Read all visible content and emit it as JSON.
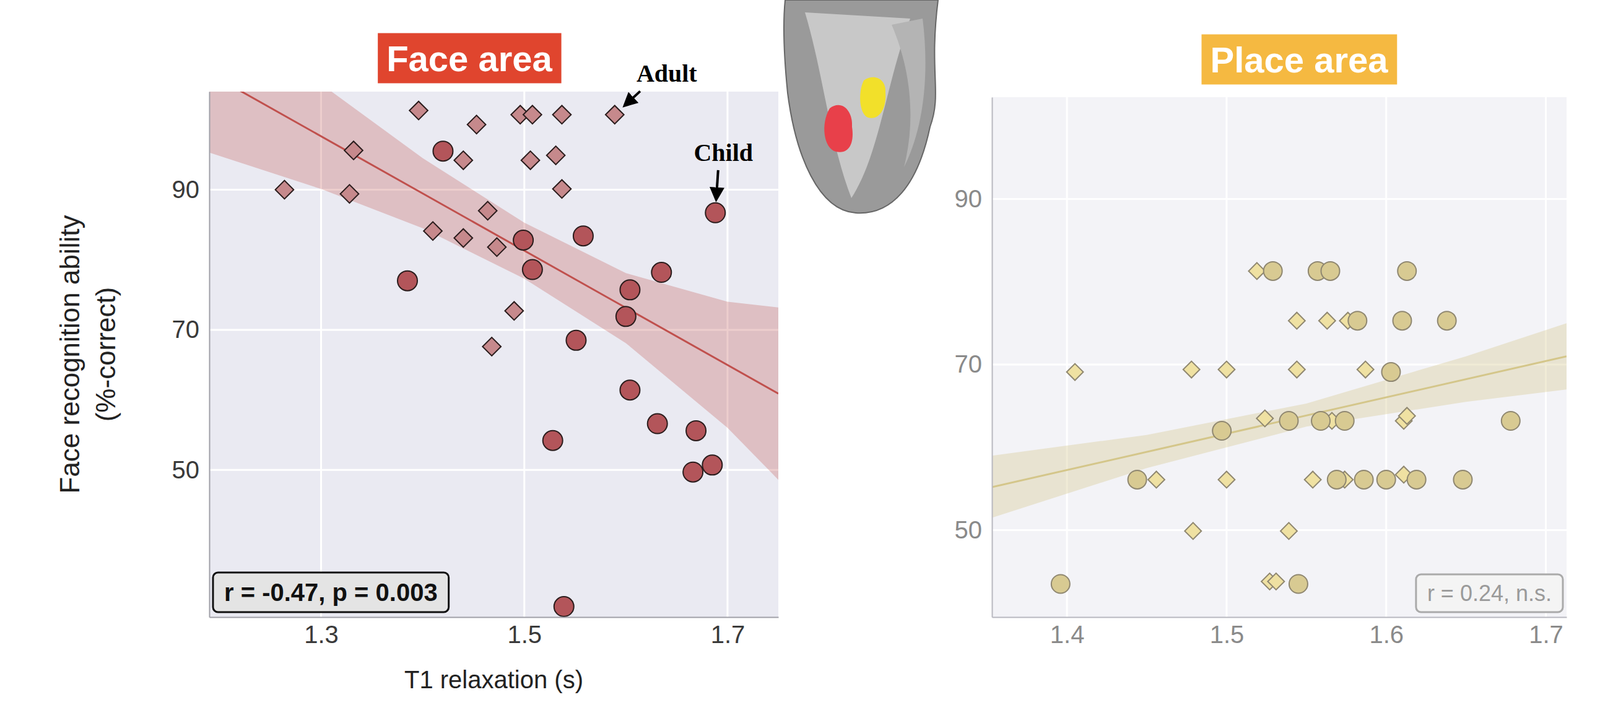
{
  "chart_data": [
    {
      "type": "scatter",
      "title": "Face area",
      "xlabel": "T1 relaxation (s)",
      "ylabel": "Face recognition ability (%-correct)",
      "xlim": [
        1.19,
        1.75
      ],
      "ylim": [
        29,
        104
      ],
      "xticks": [
        1.3,
        1.5,
        1.7
      ],
      "yticks": [
        50,
        70,
        90
      ],
      "grid": true,
      "color": "#c0504d",
      "series": [
        {
          "marker": "diamond",
          "color": "#c6898c",
          "x": [
            1.264,
            1.328,
            1.332,
            1.396,
            1.41,
            1.44,
            1.44,
            1.453,
            1.464,
            1.473,
            1.49,
            1.468,
            1.496,
            1.508,
            1.506,
            1.531,
            1.537,
            1.537,
            1.589
          ],
          "y": [
            90.0,
            89.4,
            95.6,
            101.3,
            84.1,
            83.1,
            94.2,
            99.3,
            87.0,
            81.8,
            72.7,
            67.6,
            100.7,
            100.7,
            94.2,
            94.9,
            100.7,
            90.1,
            100.7
          ]
        },
        {
          "marker": "circle",
          "color": "#b3555a",
          "x": [
            1.385,
            1.42,
            1.499,
            1.508,
            1.558,
            1.551,
            1.528,
            1.539,
            1.604,
            1.6,
            1.604,
            1.635,
            1.631,
            1.669,
            1.666,
            1.685,
            1.688
          ],
          "y": [
            77.0,
            95.5,
            82.8,
            78.6,
            83.4,
            68.5,
            54.2,
            30.5,
            75.7,
            71.9,
            61.4,
            78.2,
            56.6,
            55.6,
            49.7,
            50.7,
            86.7
          ]
        }
      ],
      "fit": {
        "x": [
          1.19,
          1.75
        ],
        "y": [
          106.6,
          60.9
        ]
      },
      "band": {
        "x": [
          1.19,
          1.3,
          1.4,
          1.5,
          1.6,
          1.7,
          1.75
        ],
        "lower": [
          95.3,
          90.1,
          84.5,
          77.3,
          68.1,
          56.0,
          48.6
        ],
        "upper": [
          118.0,
          105.1,
          94.5,
          85.3,
          78.1,
          74.0,
          73.2
        ]
      },
      "annotations": [
        {
          "text": "Adult",
          "x": 1.589,
          "y": 100.7
        },
        {
          "text": "Child",
          "x": 1.688,
          "y": 86.7
        }
      ],
      "note": "r = -0.47, p = 0.003"
    },
    {
      "type": "scatter",
      "title": "Place area",
      "xlim": [
        1.353,
        1.713
      ],
      "ylim": [
        39.5,
        102.3
      ],
      "xticks": [
        1.4,
        1.5,
        1.6,
        1.7
      ],
      "yticks": [
        50,
        70,
        90
      ],
      "grid": true,
      "color": "#d4c68a",
      "series": [
        {
          "marker": "diamond",
          "color": "#efe1a2",
          "x": [
            1.405,
            1.456,
            1.478,
            1.479,
            1.5,
            1.5,
            1.519,
            1.524,
            1.527,
            1.531,
            1.539,
            1.544,
            1.544,
            1.554,
            1.563,
            1.566,
            1.576,
            1.574,
            1.587,
            1.611,
            1.611,
            1.613
          ],
          "y": [
            69.1,
            56.1,
            69.4,
            49.9,
            69.4,
            56.1,
            81.3,
            63.5,
            43.8,
            43.8,
            49.9,
            75.3,
            69.4,
            56.1,
            75.3,
            63.2,
            75.3,
            56.1,
            69.4,
            63.2,
            56.7,
            63.8
          ]
        },
        {
          "marker": "circle",
          "color": "#d8ca92",
          "x": [
            1.396,
            1.444,
            1.497,
            1.529,
            1.539,
            1.545,
            1.557,
            1.565,
            1.559,
            1.574,
            1.582,
            1.569,
            1.586,
            1.6,
            1.603,
            1.61,
            1.613,
            1.619,
            1.638,
            1.648,
            1.678
          ],
          "y": [
            43.5,
            56.1,
            62.0,
            81.3,
            63.2,
            43.5,
            81.3,
            81.3,
            63.2,
            63.2,
            75.3,
            56.1,
            56.1,
            56.1,
            69.1,
            75.3,
            81.3,
            56.1,
            75.3,
            56.1,
            63.2
          ]
        }
      ],
      "fit": {
        "x": [
          1.353,
          1.713
        ],
        "y": [
          55.2,
          71.0
        ]
      },
      "band": {
        "x": [
          1.353,
          1.45,
          1.55,
          1.65,
          1.713
        ],
        "lower": [
          51.5,
          57.5,
          62.5,
          65.5,
          67.0
        ],
        "upper": [
          59.0,
          61.5,
          65.3,
          71.0,
          75.0
        ]
      },
      "note": "r = 0.24, n.s."
    }
  ]
}
